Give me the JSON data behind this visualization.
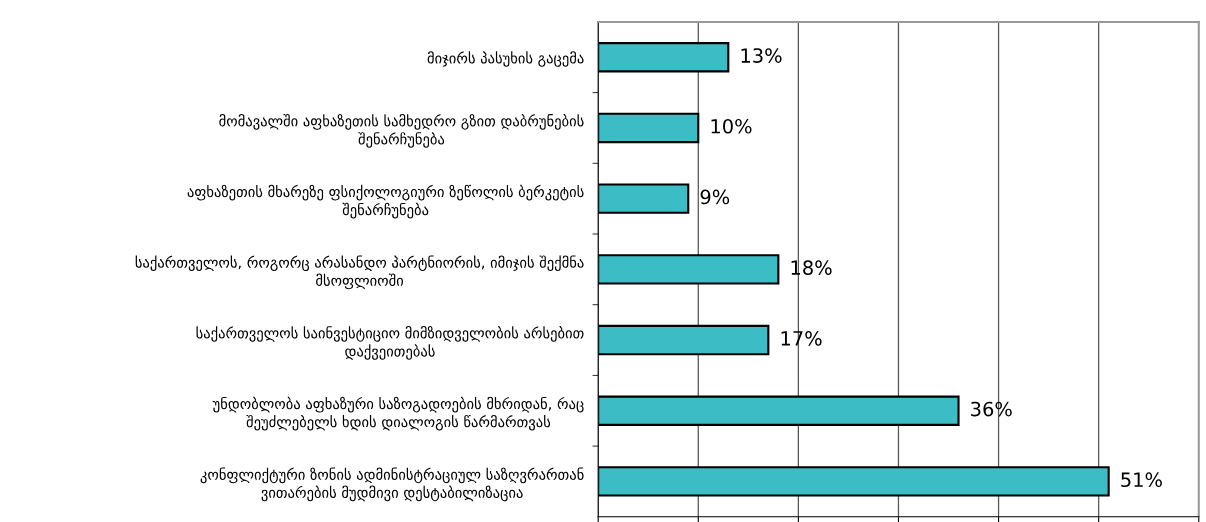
{
  "chart_data": {
    "type": "bar",
    "orientation": "horizontal",
    "categories": [
      "მიჯირს პასუხის გაცემა",
      "მომავალში აფხაზეთის სამხედრო გზით დაბრუნების\nშენარჩუნება",
      "აფხაზეთის მხარეზე ფსიქოლოგიური ზეწოლის ბერკეტის\nშენარჩუნება",
      "საქართველოს, როგორც არასანდო პარტნიორის, იმიჯის შექმნა\nმსოფლიოში",
      "საქართველოს საინვესტიციო მიმზიდველობის არსებით\nდაქვეითებას",
      "უნდობლობა აფხაზური საზოგადოების მხრიდან, რაც\nშეუძლებელს ხდის დიალოგის წარმართვას",
      "კონფლიქტური ზონის ადმინისტრაციულ საზღვრართან\nვითარების მუდმივი დესტაბილიზაცია"
    ],
    "values": [
      13,
      10,
      9,
      18,
      17,
      36,
      51
    ],
    "value_labels": [
      "13%",
      "10%",
      "9%",
      "18%",
      "17%",
      "36%",
      "51%"
    ],
    "color": "#3cbcc4",
    "xlim": [
      0,
      60
    ],
    "xticks": [
      {
        "value": 0,
        "label": null
      },
      {
        "value": 10,
        "label": null
      },
      {
        "value": 20,
        "label": null
      },
      {
        "value": 30,
        "label": null
      },
      {
        "value": 40,
        "label": null
      },
      {
        "value": 50,
        "label": null
      },
      {
        "value": 60,
        "label": null
      }
    ],
    "grid": "x",
    "tick_labels": "y"
  }
}
